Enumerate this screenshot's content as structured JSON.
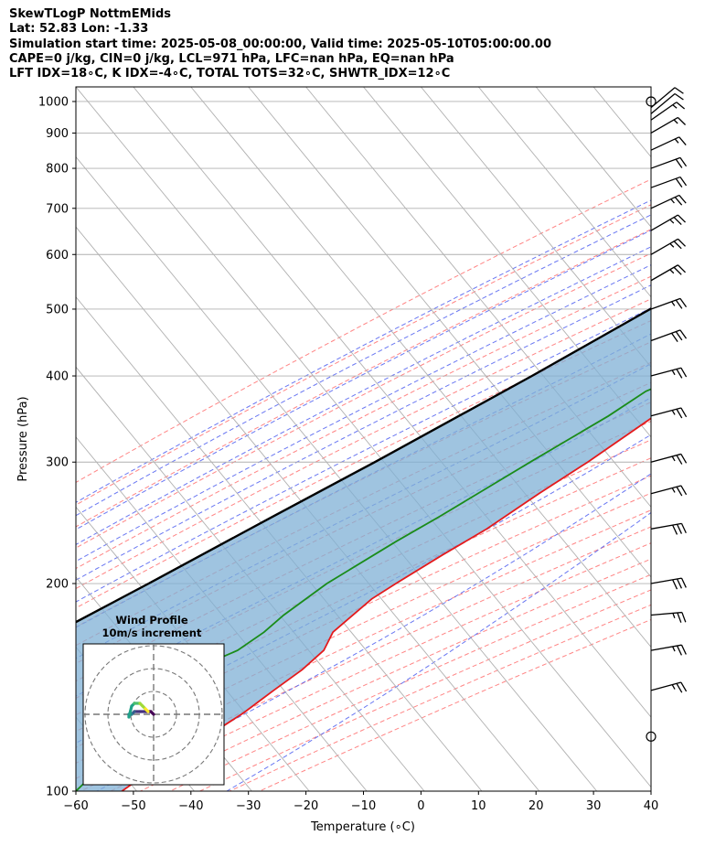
{
  "header": {
    "line1": "SkewTLogP NottmEMids",
    "line2": "Lat: 52.83   Lon: -1.33",
    "line3": "Simulation start time: 2025-05-08_00:00:00, Valid time: 2025-05-10T05:00:00.00",
    "line4": "CAPE=0 j/kg, CIN=0 j/kg, LCL=971 hPa, LFC=nan hPa, EQ=nan hPa",
    "line5": "LFT IDX=18∘C, K IDX=-4∘C, TOTAL TOTS=32∘C, SHWTR_IDX=12∘C"
  },
  "chart_data": {
    "type": "line",
    "subtype": "skew-T log-P diagram",
    "xlabel": "Temperature (∘C)",
    "ylabel": "Pressure (hPa)",
    "xlim": [
      -60,
      40
    ],
    "ylim": [
      1050,
      100
    ],
    "y_scale": "log",
    "x_ticks": [
      -60,
      -50,
      -40,
      -30,
      -20,
      -10,
      0,
      10,
      20,
      30,
      40
    ],
    "x_tick_labels": [
      "−60",
      "−50",
      "−40",
      "−30",
      "−20",
      "−10",
      "0",
      "10",
      "20",
      "30",
      "40"
    ],
    "y_ticks": [
      1000,
      900,
      800,
      700,
      600,
      500,
      400,
      300,
      200,
      100
    ],
    "grid": true,
    "colors": {
      "temperature": "#e41a1c",
      "dewpoint": "#1a8c1a",
      "parcel": "#000000",
      "cape_cin_fill": "#7fb0d5",
      "dry_adiabats": "#ff6666",
      "moist_adiabats": "#4f5ff0",
      "mixing_ratio": "#a050c8",
      "isotherms": "#b0b0b0"
    },
    "series": [
      {
        "key": "temperature",
        "p": [
          1010,
          1000,
          980,
          950,
          900,
          850,
          800,
          750,
          700,
          650,
          600,
          550,
          500,
          450,
          430,
          400,
          350,
          300,
          270,
          240,
          220,
          200,
          190,
          170,
          160,
          150,
          140,
          130,
          120,
          110,
          100
        ],
        "t": [
          5.5,
          12.5,
          13.0,
          11.0,
          9.0,
          8.5,
          8.0,
          7.5,
          6.0,
          4.0,
          1.5,
          -1.0,
          -3.0,
          -5.0,
          -6.0,
          -8.0,
          -13.0,
          -18.0,
          -22.0,
          -26.0,
          -30.0,
          -34.0,
          -36.0,
          -38.0,
          -37.0,
          -38.0,
          -40.0,
          -42.0,
          -45.0,
          -49.0,
          -52.0
        ]
      },
      {
        "key": "dewpoint",
        "p": [
          1010,
          1000,
          980,
          950,
          920,
          900,
          850,
          800,
          750,
          700,
          650,
          600,
          550,
          500,
          470,
          450,
          420,
          380,
          350,
          300,
          250,
          230,
          200,
          180,
          170,
          160,
          150,
          140,
          120,
          100
        ],
        "t": [
          3.0,
          4.0,
          6.5,
          5.0,
          0.0,
          -3.0,
          -8.0,
          -12.0,
          -12.0,
          -10.0,
          -7.5,
          -7.0,
          -9.0,
          -8.0,
          -5.0,
          -6.0,
          -10.0,
          -18.0,
          -21.0,
          -28.0,
          -36.0,
          -40.0,
          -46.0,
          -49.0,
          -50.0,
          -52.0,
          -57.0,
          -58.0,
          -58.0,
          -60.0
        ]
      },
      {
        "key": "parcel",
        "p": [
          1010,
          971,
          900,
          800,
          700,
          600,
          500,
          400,
          300,
          250,
          200,
          150,
          100
        ],
        "t": [
          5.5,
          2.0,
          -3.0,
          -8.0,
          -14.0,
          -20.5,
          -29.0,
          -40.0,
          -55.0,
          -65.0,
          -77.0,
          -93.0,
          -117.0
        ]
      }
    ],
    "wind_barbs": [
      {
        "p": 1000,
        "speed_kt": 0,
        "dir_deg": 0
      },
      {
        "p": 980,
        "speed_kt": 10,
        "dir_deg": 50
      },
      {
        "p": 960,
        "speed_kt": 10,
        "dir_deg": 50
      },
      {
        "p": 940,
        "speed_kt": 15,
        "dir_deg": 55
      },
      {
        "p": 900,
        "speed_kt": 15,
        "dir_deg": 60
      },
      {
        "p": 850,
        "speed_kt": 15,
        "dir_deg": 65
      },
      {
        "p": 800,
        "speed_kt": 20,
        "dir_deg": 70
      },
      {
        "p": 750,
        "speed_kt": 20,
        "dir_deg": 70
      },
      {
        "p": 700,
        "speed_kt": 25,
        "dir_deg": 65
      },
      {
        "p": 650,
        "speed_kt": 25,
        "dir_deg": 60
      },
      {
        "p": 600,
        "speed_kt": 25,
        "dir_deg": 60
      },
      {
        "p": 550,
        "speed_kt": 25,
        "dir_deg": 60
      },
      {
        "p": 500,
        "speed_kt": 25,
        "dir_deg": 70
      },
      {
        "p": 450,
        "speed_kt": 30,
        "dir_deg": 70
      },
      {
        "p": 400,
        "speed_kt": 25,
        "dir_deg": 75
      },
      {
        "p": 350,
        "speed_kt": 25,
        "dir_deg": 75
      },
      {
        "p": 300,
        "speed_kt": 25,
        "dir_deg": 75
      },
      {
        "p": 270,
        "speed_kt": 25,
        "dir_deg": 75
      },
      {
        "p": 240,
        "speed_kt": 30,
        "dir_deg": 80
      },
      {
        "p": 200,
        "speed_kt": 30,
        "dir_deg": 80
      },
      {
        "p": 180,
        "speed_kt": 25,
        "dir_deg": 85
      },
      {
        "p": 160,
        "speed_kt": 25,
        "dir_deg": 80
      },
      {
        "p": 140,
        "speed_kt": 25,
        "dir_deg": 75
      },
      {
        "p": 120,
        "speed_kt": 0,
        "dir_deg": 0
      }
    ],
    "hodograph": {
      "title": "Wind Profile",
      "subtitle": "10m/s increment",
      "rings_ms": [
        10,
        20,
        30
      ],
      "u": [
        0,
        -1,
        -3,
        -5,
        -7,
        -8,
        -9,
        -9,
        -8,
        -7,
        -5,
        -4,
        -3,
        -2
      ],
      "v": [
        0,
        1,
        1,
        1,
        1,
        0,
        0,
        -1,
        3,
        4,
        4,
        3,
        2,
        1
      ]
    }
  }
}
